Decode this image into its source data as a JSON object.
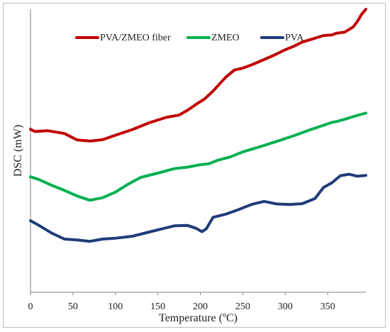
{
  "chart_data": {
    "type": "line",
    "xlabel": "Temperature (ºC)",
    "ylabel": "DSC (mW)",
    "xlim": [
      0,
      395
    ],
    "ylim": [
      0,
      1
    ],
    "xticks": [
      0,
      50,
      100,
      150,
      200,
      250,
      300,
      350
    ],
    "grid": false,
    "legend_position": "top",
    "series": [
      {
        "name": "PVA/ZMEO fiber",
        "color": "#c00000",
        "x": [
          0,
          5,
          20,
          40,
          55,
          70,
          85,
          100,
          120,
          140,
          160,
          175,
          185,
          195,
          205,
          215,
          230,
          240,
          250,
          260,
          275,
          290,
          300,
          310,
          320,
          330,
          345,
          355,
          360,
          370,
          380,
          385,
          390,
          395
        ],
        "y": [
          0.576,
          0.568,
          0.571,
          0.561,
          0.538,
          0.534,
          0.539,
          0.555,
          0.575,
          0.599,
          0.618,
          0.626,
          0.643,
          0.664,
          0.683,
          0.711,
          0.76,
          0.785,
          0.792,
          0.803,
          0.822,
          0.842,
          0.857,
          0.869,
          0.884,
          0.893,
          0.907,
          0.909,
          0.915,
          0.919,
          0.937,
          0.957,
          0.982,
          1.0
        ]
      },
      {
        "name": "ZMEO",
        "color": "#00b050",
        "x": [
          0,
          10,
          25,
          40,
          55,
          70,
          85,
          100,
          115,
          130,
          150,
          170,
          185,
          200,
          210,
          220,
          235,
          250,
          270,
          290,
          310,
          330,
          345,
          355,
          360,
          370,
          385,
          395
        ],
        "y": [
          0.408,
          0.398,
          0.378,
          0.36,
          0.34,
          0.325,
          0.334,
          0.354,
          0.382,
          0.406,
          0.421,
          0.437,
          0.442,
          0.451,
          0.454,
          0.466,
          0.478,
          0.496,
          0.514,
          0.533,
          0.553,
          0.575,
          0.59,
          0.6,
          0.603,
          0.611,
          0.625,
          0.633
        ]
      },
      {
        "name": "PVA",
        "color": "#1f3c7a",
        "x": [
          0,
          10,
          25,
          40,
          55,
          70,
          85,
          100,
          120,
          140,
          155,
          170,
          185,
          195,
          202,
          207,
          215,
          230,
          245,
          260,
          275,
          290,
          305,
          320,
          335,
          345,
          355,
          365,
          375,
          385,
          395
        ],
        "y": [
          0.253,
          0.236,
          0.209,
          0.188,
          0.185,
          0.18,
          0.188,
          0.191,
          0.198,
          0.213,
          0.224,
          0.235,
          0.236,
          0.226,
          0.214,
          0.224,
          0.265,
          0.276,
          0.292,
          0.31,
          0.321,
          0.312,
          0.31,
          0.313,
          0.331,
          0.37,
          0.387,
          0.412,
          0.417,
          0.41,
          0.413
        ]
      }
    ]
  }
}
